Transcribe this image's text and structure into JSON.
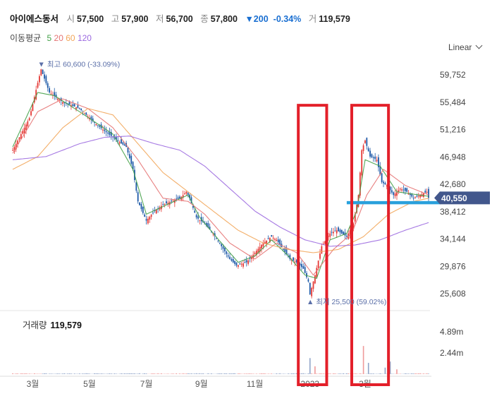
{
  "header": {
    "name": "아이에스동서",
    "open_label": "시",
    "open": "57,500",
    "high_label": "고",
    "high": "57,900",
    "low_label": "저",
    "low": "56,700",
    "close_label": "종",
    "close": "57,800",
    "change": "▼200",
    "change_pct": "-0.34%",
    "volume_label": "거",
    "volume": "119,579"
  },
  "ma_legend": {
    "title": "이동평균",
    "periods": [
      "5",
      "20",
      "60",
      "120"
    ],
    "colors": [
      "#43a047",
      "#e57373",
      "#f2a65a",
      "#9c6ae0"
    ]
  },
  "scale_mode": "Linear",
  "volume_panel": {
    "label": "거래량",
    "value": "119,579"
  },
  "colors": {
    "up": "#e53935",
    "down": "#1e5aa8",
    "highlight_box": "#e3202a",
    "support_line": "#2aa0dc",
    "price_tag": "#42578c"
  },
  "chart_data": {
    "type": "candlestick",
    "y_ticks": [
      "59,752",
      "55,484",
      "51,216",
      "46,948",
      "42,680",
      "38,412",
      "34,144",
      "29,876",
      "25,608"
    ],
    "y_tick_values": [
      59752,
      55484,
      51216,
      46948,
      42680,
      38412,
      34144,
      29876,
      25608
    ],
    "x_ticks": [
      "3월",
      "5월",
      "7월",
      "9월",
      "11월",
      "2023",
      "3월"
    ],
    "volume_ticks": [
      "4.89m",
      "2.44m"
    ],
    "volume_tick_values": [
      4.89,
      2.44
    ],
    "current_price": "40,550",
    "current_price_value": 40550,
    "high_annotation": "▼ 최고 60,600 (-33.09%)",
    "high_value": 60600,
    "low_annotation": "▲ 최저 25,500 (59.02%)",
    "low_value": 25500,
    "support_level": 39800,
    "price_path": [
      [
        0,
        48000
      ],
      [
        5,
        50500
      ],
      [
        10,
        53000
      ],
      [
        15,
        58500
      ],
      [
        17,
        60600
      ],
      [
        22,
        57000
      ],
      [
        30,
        55500
      ],
      [
        40,
        54500
      ],
      [
        48,
        52500
      ],
      [
        55,
        51000
      ],
      [
        60,
        50000
      ],
      [
        68,
        48500
      ],
      [
        72,
        45000
      ],
      [
        75,
        40000
      ],
      [
        80,
        37000
      ],
      [
        85,
        38500
      ],
      [
        90,
        39500
      ],
      [
        95,
        40000
      ],
      [
        100,
        40500
      ],
      [
        104,
        41500
      ],
      [
        106,
        40500
      ],
      [
        110,
        37500
      ],
      [
        115,
        36500
      ],
      [
        120,
        35000
      ],
      [
        125,
        33000
      ],
      [
        130,
        31000
      ],
      [
        134,
        30000
      ],
      [
        140,
        30500
      ],
      [
        145,
        32000
      ],
      [
        150,
        33500
      ],
      [
        155,
        34500
      ],
      [
        158,
        34000
      ],
      [
        162,
        32500
      ],
      [
        166,
        31000
      ],
      [
        170,
        30500
      ],
      [
        174,
        29500
      ],
      [
        177,
        27500
      ],
      [
        178,
        25500
      ],
      [
        181,
        28500
      ],
      [
        185,
        33000
      ],
      [
        190,
        35000
      ],
      [
        194,
        35500
      ],
      [
        200,
        34500
      ],
      [
        204,
        36500
      ],
      [
        207,
        41000
      ],
      [
        209,
        48000
      ],
      [
        211,
        49500
      ],
      [
        214,
        47000
      ],
      [
        218,
        46500
      ],
      [
        221,
        43000
      ],
      [
        224,
        42500
      ],
      [
        228,
        41000
      ],
      [
        232,
        42000
      ],
      [
        236,
        41500
      ],
      [
        240,
        40500
      ],
      [
        244,
        41000
      ],
      [
        248,
        41500
      ],
      [
        249,
        40550
      ]
    ],
    "ma_paths": {
      "ma5": [
        [
          0,
          48500
        ],
        [
          15,
          57000
        ],
        [
          25,
          56500
        ],
        [
          40,
          54000
        ],
        [
          60,
          50500
        ],
        [
          72,
          45000
        ],
        [
          80,
          38000
        ],
        [
          95,
          39800
        ],
        [
          105,
          41000
        ],
        [
          112,
          37500
        ],
        [
          125,
          33500
        ],
        [
          135,
          30500
        ],
        [
          145,
          31500
        ],
        [
          155,
          34000
        ],
        [
          165,
          31500
        ],
        [
          175,
          28500
        ],
        [
          182,
          28000
        ],
        [
          190,
          34000
        ],
        [
          200,
          35000
        ],
        [
          206,
          38500
        ],
        [
          211,
          46500
        ],
        [
          220,
          45500
        ],
        [
          230,
          41500
        ],
        [
          249,
          40800
        ]
      ],
      "ma20": [
        [
          0,
          47500
        ],
        [
          15,
          54000
        ],
        [
          30,
          56000
        ],
        [
          45,
          54500
        ],
        [
          60,
          51500
        ],
        [
          75,
          46500
        ],
        [
          90,
          40500
        ],
        [
          105,
          40000
        ],
        [
          115,
          38000
        ],
        [
          130,
          33500
        ],
        [
          145,
          31000
        ],
        [
          158,
          33500
        ],
        [
          170,
          32000
        ],
        [
          180,
          28500
        ],
        [
          192,
          32500
        ],
        [
          203,
          35000
        ],
        [
          212,
          41000
        ],
        [
          222,
          45000
        ],
        [
          235,
          42500
        ],
        [
          249,
          41000
        ]
      ],
      "ma60": [
        [
          0,
          45000
        ],
        [
          15,
          47000
        ],
        [
          30,
          51500
        ],
        [
          45,
          54500
        ],
        [
          60,
          53500
        ],
        [
          75,
          49000
        ],
        [
          90,
          44500
        ],
        [
          105,
          41500
        ],
        [
          120,
          38500
        ],
        [
          135,
          35500
        ],
        [
          150,
          33500
        ],
        [
          165,
          32500
        ],
        [
          180,
          32000
        ],
        [
          195,
          32500
        ],
        [
          210,
          34500
        ],
        [
          225,
          38000
        ],
        [
          240,
          40000
        ],
        [
          249,
          40500
        ]
      ],
      "ma120": [
        [
          0,
          46500
        ],
        [
          20,
          47000
        ],
        [
          40,
          49000
        ],
        [
          55,
          50000
        ],
        [
          70,
          50200
        ],
        [
          85,
          49000
        ],
        [
          100,
          48000
        ],
        [
          115,
          45500
        ],
        [
          130,
          42000
        ],
        [
          145,
          38500
        ],
        [
          160,
          36000
        ],
        [
          175,
          34000
        ],
        [
          190,
          33000
        ],
        [
          205,
          33200
        ],
        [
          220,
          34000
        ],
        [
          235,
          35500
        ],
        [
          249,
          36700
        ]
      ]
    },
    "volume_spikes": [
      [
        178,
        1.85
      ],
      [
        181,
        0.9
      ],
      [
        210,
        3.25
      ],
      [
        213,
        1.3
      ],
      [
        223,
        0.75
      ],
      [
        226,
        1.45
      ],
      [
        230,
        0.55
      ]
    ],
    "highlight_boxes": [
      [
        171,
        188
      ],
      [
        203,
        225
      ]
    ]
  }
}
